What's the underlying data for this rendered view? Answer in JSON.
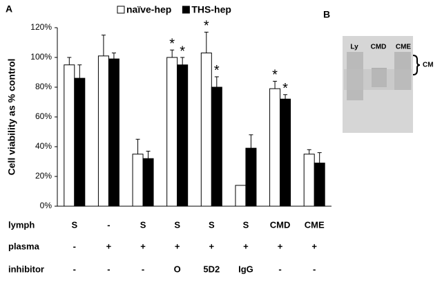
{
  "chart_data": {
    "type": "bar",
    "panel_label": "A",
    "y_label": "Cell viability as % control",
    "condition_rows": [
      {
        "label": "lymph",
        "values": [
          "S",
          "-",
          "S",
          "S",
          "S",
          "S",
          "CMD",
          "CME"
        ]
      },
      {
        "label": "plasma",
        "values": [
          "-",
          "+",
          "+",
          "+",
          "+",
          "+",
          "+",
          "+"
        ]
      },
      {
        "label": "inhibitor",
        "values": [
          "-",
          "-",
          "-",
          "O",
          "5D2",
          "IgG",
          "-",
          "-"
        ]
      }
    ],
    "series": [
      {
        "name": "naïve-hep",
        "color": "#ffffff",
        "values": [
          95,
          101,
          35,
          100,
          103,
          14,
          79,
          35
        ],
        "errors": [
          5,
          14,
          10,
          5,
          14,
          null,
          5,
          3
        ],
        "annotations": [
          null,
          null,
          null,
          "*",
          "*",
          null,
          "*",
          null
        ]
      },
      {
        "name": "THS-hep",
        "color": "#000000",
        "values": [
          86,
          99,
          32,
          95,
          80,
          39,
          72,
          29
        ],
        "errors": [
          9,
          4,
          5,
          5,
          7,
          9,
          3,
          7
        ],
        "annotations": [
          null,
          null,
          null,
          "*",
          "*",
          null,
          "*",
          null
        ]
      }
    ],
    "ylim": [
      0,
      120
    ],
    "yticks": [
      {
        "value": 0,
        "label": "0%"
      },
      {
        "value": 20,
        "label": "20%"
      },
      {
        "value": 40,
        "label": "40%"
      },
      {
        "value": 60,
        "label": "60%"
      },
      {
        "value": 80,
        "label": "80%"
      },
      {
        "value": 100,
        "label": "100%"
      },
      {
        "value": 120,
        "label": "120%"
      }
    ],
    "legend": "top"
  },
  "panel_b": {
    "label": "B",
    "lanes": [
      "Ly",
      "CMD",
      "CME"
    ],
    "bracket_label": "CM"
  }
}
